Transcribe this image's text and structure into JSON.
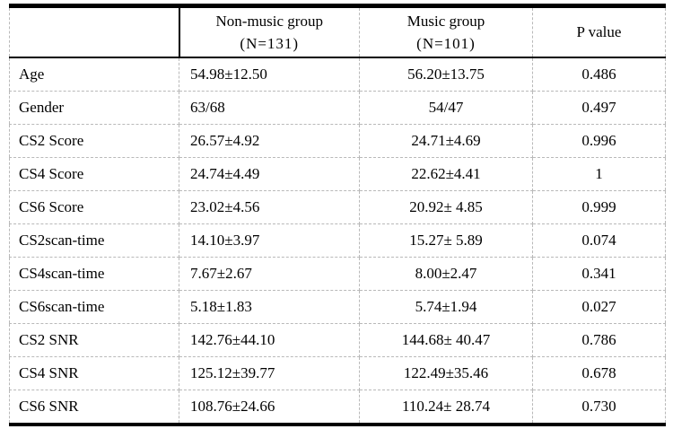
{
  "table": {
    "columns": [
      {
        "label": ""
      },
      {
        "label": "Non-music group",
        "sub": "(N=131)"
      },
      {
        "label": "Music group",
        "sub": "(N=101)"
      },
      {
        "label": "P value"
      }
    ],
    "rows": [
      {
        "label": "Age",
        "g1": "54.98±12.50",
        "g2": "56.20±13.75",
        "p": "0.486"
      },
      {
        "label": "Gender",
        "g1": "63/68",
        "g2": "54/47",
        "p": "0.497"
      },
      {
        "label": "CS2 Score",
        "g1": "26.57±4.92",
        "g2": "24.71±4.69",
        "p": "0.996"
      },
      {
        "label": "CS4 Score",
        "g1": "24.74±4.49",
        "g2": "22.62±4.41",
        "p": "1"
      },
      {
        "label": "CS6 Score",
        "g1": "23.02±4.56",
        "g2": "20.92± 4.85",
        "p": "0.999"
      },
      {
        "label": "CS2scan-time",
        "g1": "14.10±3.97",
        "g2": "15.27± 5.89",
        "p": "0.074"
      },
      {
        "label": "CS4scan-time",
        "g1": "7.67±2.67",
        "g2": "8.00±2.47",
        "p": "0.341"
      },
      {
        "label": "CS6scan-time",
        "g1": "5.18±1.83",
        "g2": "5.74±1.94",
        "p": "0.027"
      },
      {
        "label": "CS2 SNR",
        "g1": "142.76±44.10",
        "g2": "144.68± 40.47",
        "p": "0.786"
      },
      {
        "label": "CS4 SNR",
        "g1": "125.12±39.77",
        "g2": "122.49±35.46",
        "p": "0.678"
      },
      {
        "label": "CS6 SNR",
        "g1": "108.76±24.66",
        "g2": "110.24± 28.74",
        "p": "0.730"
      }
    ]
  },
  "colors": {
    "background": "#ffffff",
    "text": "#000000",
    "solid_border": "#000000",
    "dashed_grid": "#b9b9b9"
  }
}
